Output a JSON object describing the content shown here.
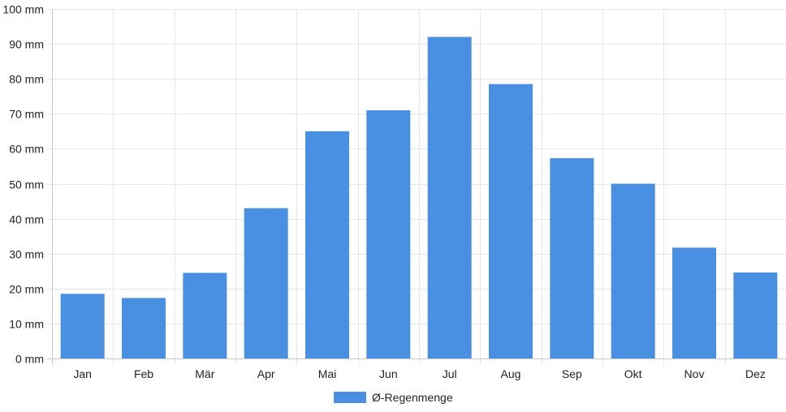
{
  "chart_data": {
    "type": "bar",
    "categories": [
      "Jan",
      "Feb",
      "Mär",
      "Apr",
      "Mai",
      "Jun",
      "Jul",
      "Aug",
      "Sep",
      "Okt",
      "Nov",
      "Dez"
    ],
    "series": [
      {
        "name": "Ø-Regenmenge",
        "color": "#4a90e2",
        "values": [
          18.5,
          17.3,
          24.5,
          43,
          65,
          71,
          92,
          78.5,
          57.3,
          50,
          31.7,
          24.6
        ]
      }
    ],
    "ylim": [
      0,
      100
    ],
    "y_ticks": [
      0,
      10,
      20,
      30,
      40,
      50,
      60,
      70,
      80,
      90,
      100
    ],
    "y_tick_suffix": " mm",
    "grid": true,
    "legend_position": "bottom"
  }
}
